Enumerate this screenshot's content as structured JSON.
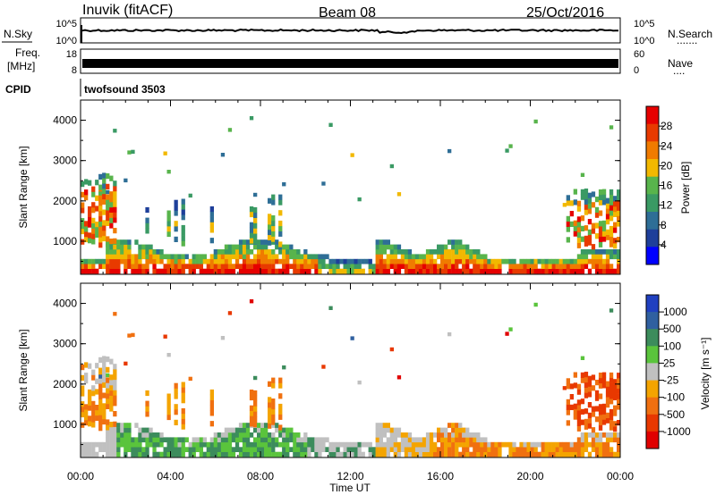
{
  "header": {
    "station": "Inuvik (fitACF)",
    "beam": "Beam 08",
    "date": "25/Oct/2016"
  },
  "noise_panel": {
    "left_label": "N.Sky",
    "right_label": "N.Search",
    "right_dots": ".......",
    "left_ticks": [
      "10^5",
      "10^0"
    ],
    "right_ticks": [
      "10^5",
      "10^0"
    ]
  },
  "freq_panel": {
    "left_label_1": "Freq.",
    "left_label_2": "[MHz]",
    "right_label": "Nave",
    "right_dots": "....",
    "left_ticks": [
      "18",
      "8"
    ],
    "right_ticks": [
      "60",
      "0"
    ]
  },
  "cpid": {
    "label": "CPID",
    "value": "twofsound 3503"
  },
  "colors": {
    "power_scale": [
      "#0000ff",
      "#1e3f9a",
      "#2e6e96",
      "#3a9a64",
      "#58b44c",
      "#f2b800",
      "#f07b00",
      "#e83a00",
      "#e60000"
    ],
    "velocity_scale": [
      "#2040c0",
      "#3060a0",
      "#3c8c5c",
      "#5ac43c",
      "#c0c0c0",
      "#f4a400",
      "#f07010",
      "#e83800",
      "#e00000"
    ]
  },
  "chart_data": [
    {
      "type": "heatmap",
      "title": "Power",
      "xlabel": "Time UT",
      "ylabel": "Slant Range [km]",
      "x_ticks": [
        "00:00",
        "04:00",
        "08:00",
        "12:00",
        "16:00",
        "20:00",
        "00:00"
      ],
      "y_ticks": [
        "1000",
        "2000",
        "3000",
        "4000"
      ],
      "ylim": [
        180,
        4500
      ],
      "colorbar_label": "Power [dB]",
      "colorbar_ticks": [
        "4",
        "8",
        "12",
        "16",
        "20",
        "24",
        "28"
      ],
      "colorbar_range": [
        0,
        32
      ]
    },
    {
      "type": "heatmap",
      "title": "Velocity",
      "xlabel": "Time UT",
      "ylabel": "Slant Range [km]",
      "x_ticks": [
        "00:00",
        "04:00",
        "08:00",
        "12:00",
        "16:00",
        "20:00",
        "00:00"
      ],
      "y_ticks": [
        "1000",
        "2000",
        "3000",
        "4000"
      ],
      "ylim": [
        180,
        4500
      ],
      "colorbar_label": "Velocity [m s⁻¹]",
      "colorbar_ticks": [
        "1000",
        "500",
        "100",
        "25",
        "-25",
        "-100",
        "-500",
        "-1000"
      ]
    }
  ]
}
